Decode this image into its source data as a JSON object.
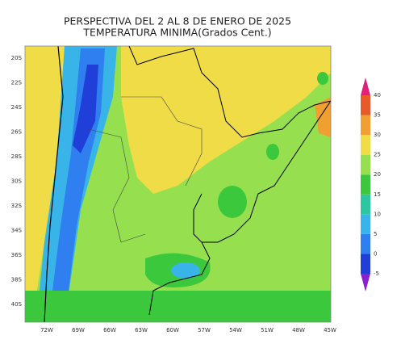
{
  "header": {
    "title": "PERSPECTIVA DEL 2 AL 8 DE ENERO DE 2025",
    "subtitle": "TEMPERATURA MINIMA(Grados Cent.)"
  },
  "map": {
    "lat_labels": [
      "20S",
      "22S",
      "24S",
      "26S",
      "28S",
      "30S",
      "32S",
      "34S",
      "36S",
      "38S",
      "40S"
    ],
    "lon_labels": [
      "72W",
      "69W",
      "66W",
      "63W",
      "60W",
      "57W",
      "54W",
      "51W",
      "48W",
      "45W"
    ]
  },
  "colorbar": {
    "levels": [
      -5,
      0,
      5,
      10,
      15,
      20,
      25,
      30,
      35,
      40
    ],
    "colors": [
      "#8c1fd0",
      "#1f3fd8",
      "#2f7ff0",
      "#38b4e8",
      "#2ac8a0",
      "#3cc83c",
      "#96e050",
      "#f0dc46",
      "#f0a030",
      "#e85a2a",
      "#e0207a"
    ]
  }
}
